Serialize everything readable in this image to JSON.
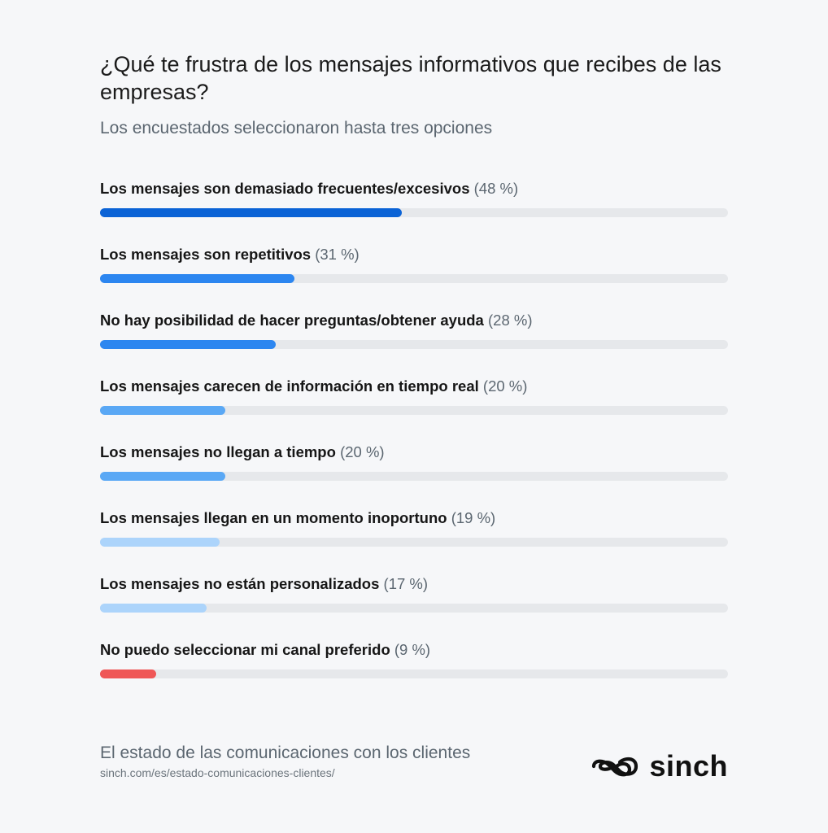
{
  "title": "¿Qué te frustra de los mensajes informativos que recibes de las empresas?",
  "subtitle": "Los encuestados seleccionaron hasta tres opciones",
  "chart_data": {
    "type": "bar",
    "orientation": "horizontal",
    "title": "¿Qué te frustra de los mensajes informativos que recibes de las empresas?",
    "subtitle": "Los encuestados seleccionaron hasta tres opciones",
    "xlim": [
      0,
      100
    ],
    "grid": false,
    "categories": [
      "Los mensajes son demasiado frecuentes/excesivos",
      "Los mensajes son repetitivos",
      "No hay posibilidad de hacer preguntas/obtener ayuda",
      "Los mensajes carecen de información en tiempo real",
      "Los mensajes no llegan a tiempo",
      "Los mensajes llegan en un momento inoportuno",
      "Los mensajes no están personalizados",
      "No puedo seleccionar mi canal preferido"
    ],
    "values": [
      48,
      31,
      28,
      20,
      20,
      19,
      17,
      9
    ],
    "value_labels": [
      "(48 %)",
      "(31 %)",
      "(28 %)",
      "(20 %)",
      "(20 %)",
      "(19 %)",
      "(17 %)",
      "(9 %)"
    ],
    "colors": [
      "#0b63d6",
      "#2c86f0",
      "#2c86f0",
      "#5aa8f5",
      "#5aa8f5",
      "#acd4fb",
      "#acd4fb",
      "#ef5656"
    ],
    "track_color": "#e6e8eb"
  },
  "footer": {
    "title": "El estado de las comunicaciones con los clientes",
    "url": "sinch.com/es/estado-comunicaciones-clientes/"
  },
  "logo": {
    "text": "sinch",
    "icon": "infinity-icon"
  }
}
